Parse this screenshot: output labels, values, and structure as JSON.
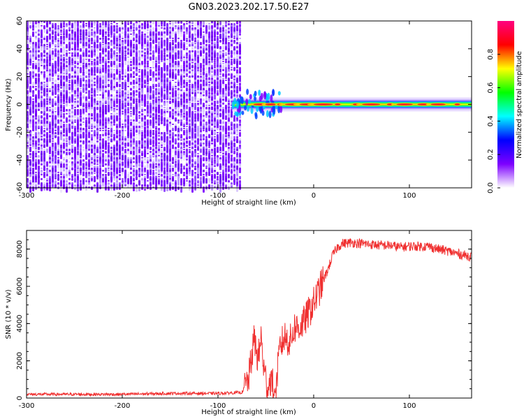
{
  "title": "GN03.2023.202.17.50.E27",
  "chart_data": [
    {
      "type": "heatmap",
      "xlabel": "Height of straight line (km)",
      "ylabel": "Frequency (Hz)",
      "xlim": [
        -300,
        165
      ],
      "ylim": [
        -60,
        60
      ],
      "x_ticks": [
        "-300",
        "-200",
        "-100",
        "0",
        "100"
      ],
      "y_ticks": [
        "-60",
        "-40",
        "-20",
        "0",
        "20",
        "40",
        "60"
      ],
      "noise_region_x": [
        -300,
        -78
      ],
      "signal_region_x": [
        -85,
        165
      ],
      "signal_center_frequency": 0,
      "colorbar": {
        "label": "Normalized spectral amplitude",
        "range": [
          0,
          1
        ],
        "ticks": [
          "0.0",
          "0.2",
          "0.4",
          "0.6",
          "0.8"
        ],
        "colors": [
          "#ffffff",
          "#7d00ff",
          "#0000ff",
          "#00ffff",
          "#00ff00",
          "#ffff00",
          "#ff0000",
          "#ff0080"
        ]
      }
    },
    {
      "type": "line",
      "xlabel": "Height of straight line (km)",
      "ylabel": "SNR (10 * v/v)",
      "xlim": [
        -300,
        165
      ],
      "ylim": [
        0,
        9000
      ],
      "x_ticks": [
        "-300",
        "-200",
        "-100",
        "0",
        "100"
      ],
      "y_ticks": [
        "0",
        "2000",
        "4000",
        "6000",
        "8000"
      ],
      "color": "#f03030",
      "x": [
        -300,
        -250,
        -200,
        -150,
        -100,
        -75,
        -68,
        -62,
        -58,
        -55,
        -52,
        -48,
        -45,
        -40,
        -35,
        -30,
        -25,
        -20,
        -15,
        -10,
        -5,
        0,
        5,
        10,
        15,
        20,
        25,
        30,
        40,
        50,
        60,
        70,
        80,
        90,
        100,
        110,
        120,
        130,
        140,
        150,
        165
      ],
      "y": [
        200,
        200,
        200,
        250,
        250,
        300,
        1000,
        3200,
        2000,
        3300,
        1500,
        600,
        1000,
        300,
        2800,
        3300,
        3000,
        3800,
        3800,
        4100,
        4600,
        5100,
        5700,
        6300,
        6900,
        7700,
        8100,
        8300,
        8350,
        8300,
        8250,
        8200,
        8200,
        8100,
        8150,
        8150,
        8150,
        8000,
        7900,
        7750,
        7600
      ]
    }
  ]
}
